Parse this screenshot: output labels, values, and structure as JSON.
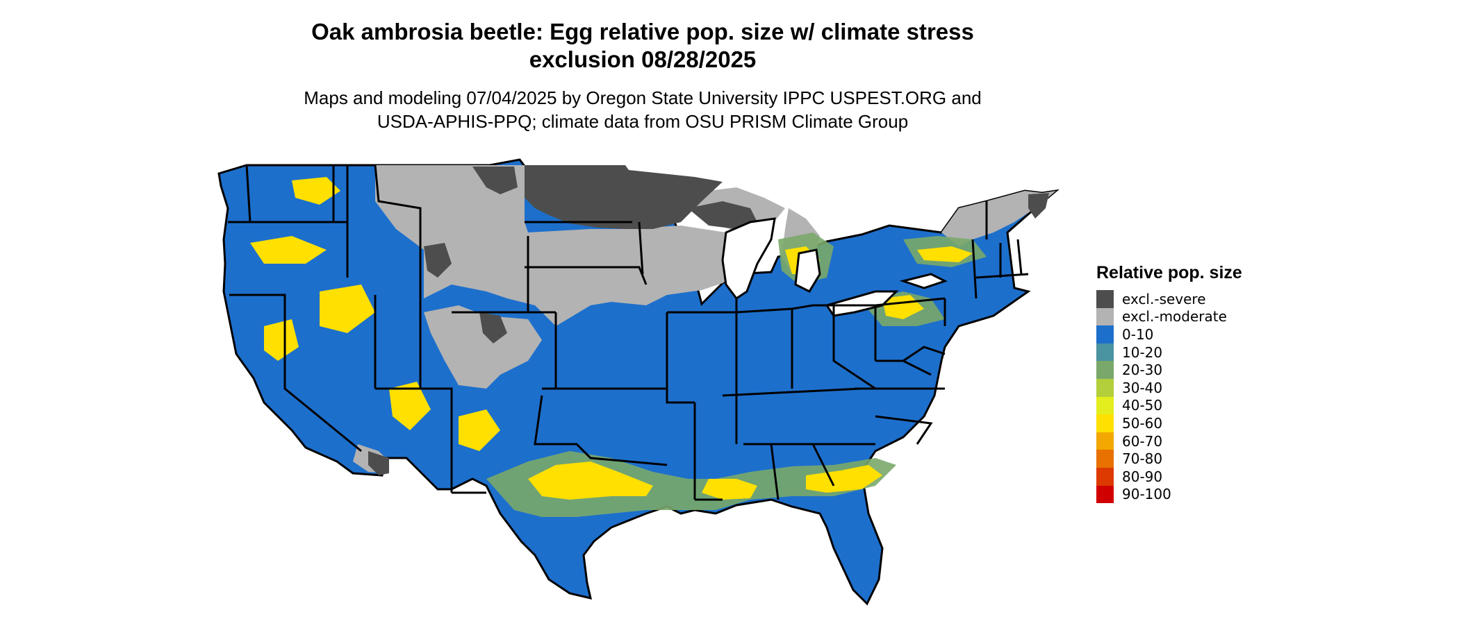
{
  "title_line1": "Oak ambrosia beetle: Egg relative pop. size w/ climate stress",
  "title_line2": "exclusion 08/28/2025",
  "subtitle_line1": "Maps and modeling 07/04/2025 by Oregon State University IPPC USPEST.ORG and",
  "subtitle_line2": "USDA-APHIS-PPQ; climate data from OSU PRISM Climate Group",
  "legend": {
    "title": "Relative pop. size",
    "items": [
      {
        "label": "excl.-severe",
        "color": "#4d4d4d"
      },
      {
        "label": "excl.-moderate",
        "color": "#b3b3b3"
      },
      {
        "label": "0-10",
        "color": "#1d6fcc"
      },
      {
        "label": "10-20",
        "color": "#4a93a0"
      },
      {
        "label": "20-30",
        "color": "#7aa86a"
      },
      {
        "label": "30-40",
        "color": "#b4cf3c"
      },
      {
        "label": "40-50",
        "color": "#e4ee1e"
      },
      {
        "label": "50-60",
        "color": "#ffe000"
      },
      {
        "label": "60-70",
        "color": "#f2a800"
      },
      {
        "label": "70-80",
        "color": "#e87100"
      },
      {
        "label": "80-90",
        "color": "#dc3a00"
      },
      {
        "label": "90-100",
        "color": "#d00000"
      }
    ]
  }
}
